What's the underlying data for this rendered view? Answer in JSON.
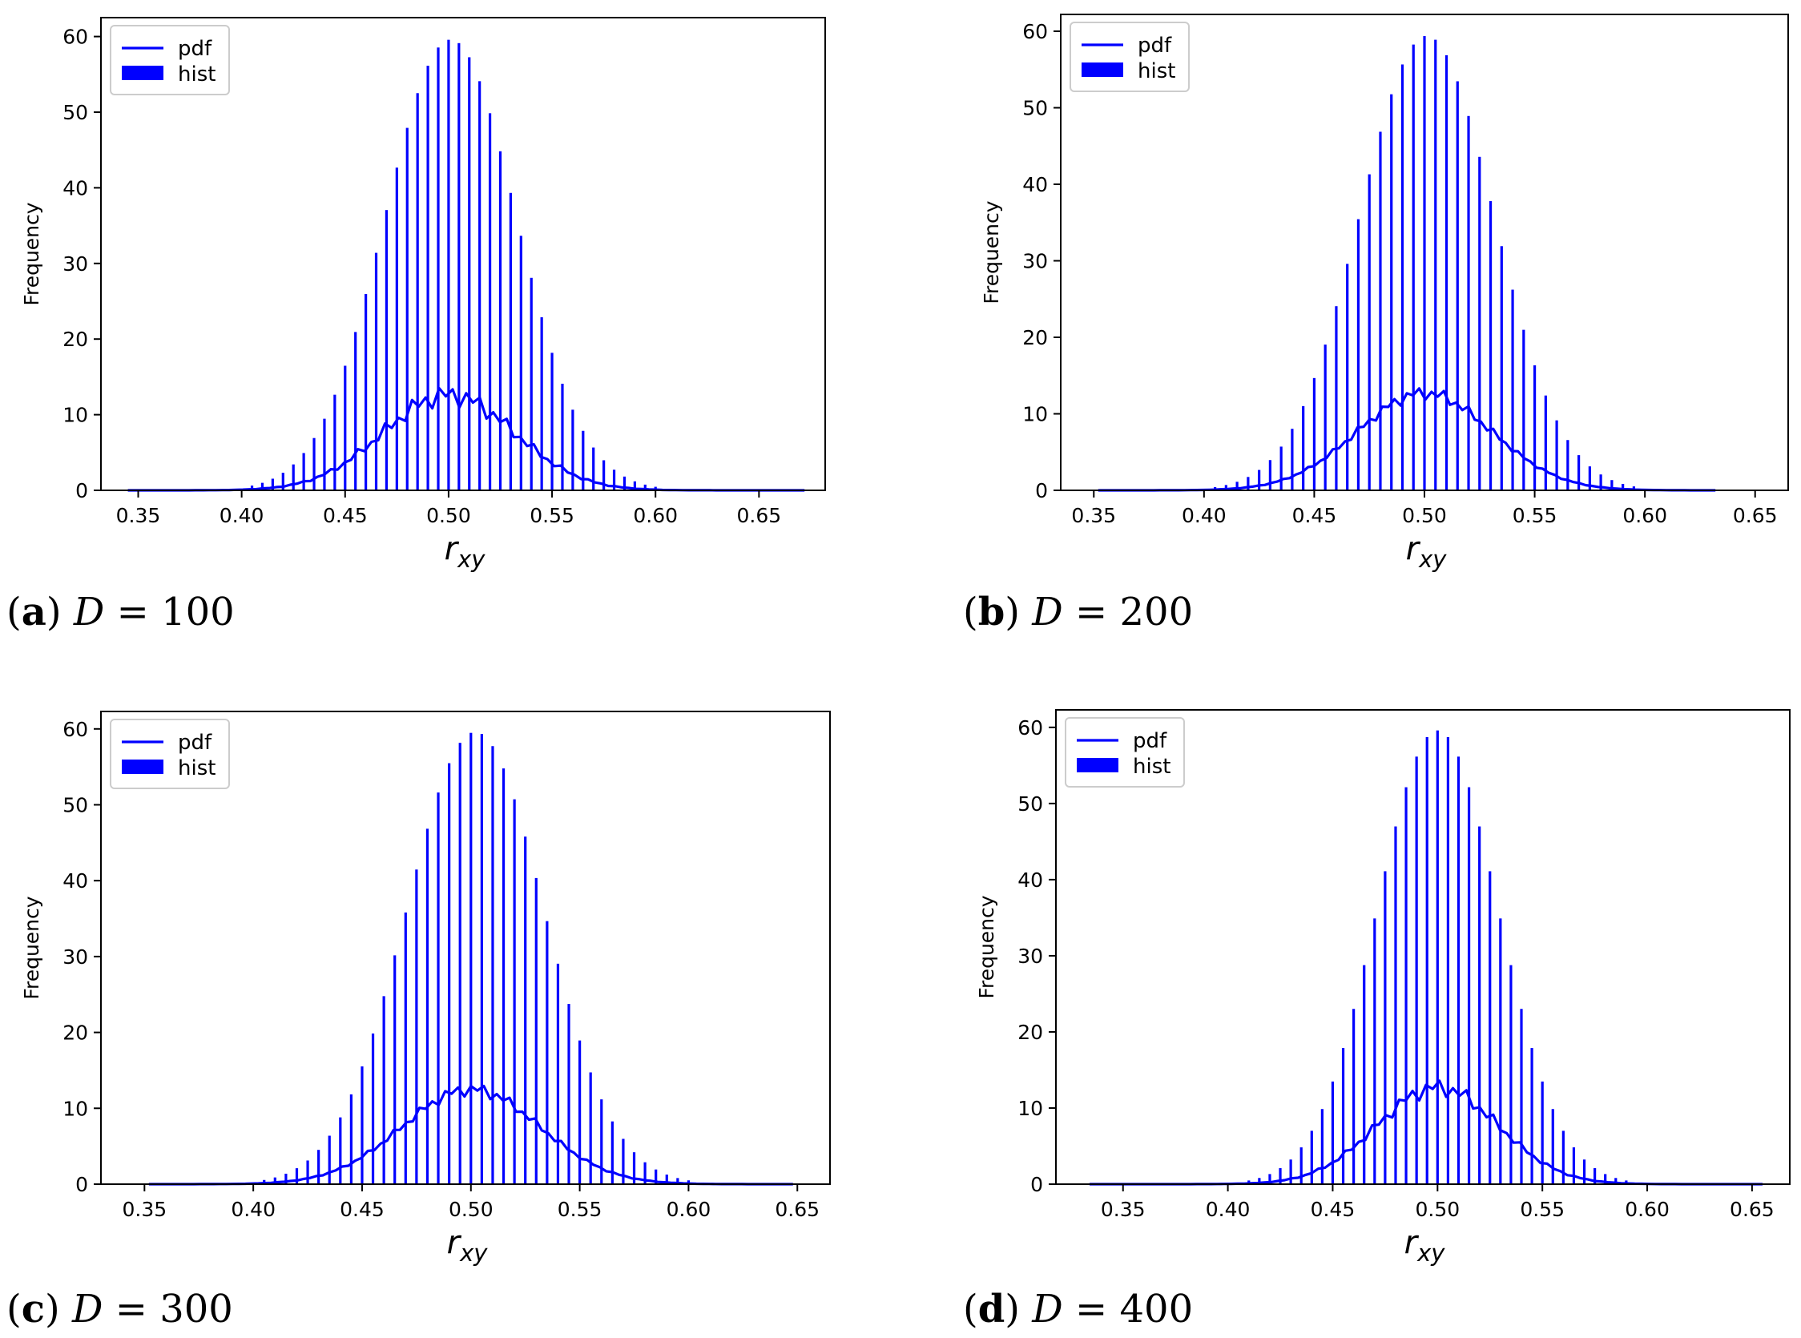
{
  "chart_data": [
    {
      "type": "bar",
      "panel_label": "a",
      "caption": "D = 100",
      "caption_var": "D",
      "caption_eq": "=",
      "caption_value": "100",
      "xlabel_base": "r",
      "xlabel_sub": "xy",
      "ylabel": "Frequency",
      "xlim": [
        0.332,
        0.682
      ],
      "ylim": [
        0,
        62.5
      ],
      "xticks": [
        0.35,
        0.4,
        0.45,
        0.5,
        0.55,
        0.6,
        0.65
      ],
      "xtick_labels": [
        "0.35",
        "0.40",
        "0.45",
        "0.50",
        "0.55",
        "0.60",
        "0.65"
      ],
      "yticks": [
        0,
        10,
        20,
        30,
        40,
        50,
        60
      ],
      "ytick_labels": [
        "0",
        "10",
        "20",
        "30",
        "40",
        "50",
        "60"
      ],
      "hist_mu": 0.501,
      "hist_sigma": 0.0318,
      "hist_peak": 59.6,
      "bar_step": 0.005,
      "bar_min_height": 0.4,
      "pdf_x_range": [
        0.345,
        0.672
      ],
      "pdf_mu": 0.5,
      "pdf_sigma": 0.0318,
      "pdf_peak": 12.6,
      "pdf_jitter": 1.5,
      "legend": [
        "pdf",
        "hist"
      ],
      "legend_position": "upper-left",
      "color": "#0000ff"
    },
    {
      "type": "bar",
      "panel_label": "b",
      "caption": "D = 200",
      "caption_var": "D",
      "caption_eq": "=",
      "caption_value": "200",
      "xlabel_base": "r",
      "xlabel_sub": "xy",
      "ylabel": "Frequency",
      "xlim": [
        0.335,
        0.665
      ],
      "ylim": [
        0,
        62.2
      ],
      "xticks": [
        0.35,
        0.4,
        0.45,
        0.5,
        0.55,
        0.6,
        0.65
      ],
      "xtick_labels": [
        "0.35",
        "0.40",
        "0.45",
        "0.50",
        "0.55",
        "0.60",
        "0.65"
      ],
      "yticks": [
        0,
        10,
        20,
        30,
        40,
        50,
        60
      ],
      "ytick_labels": [
        "0",
        "10",
        "20",
        "30",
        "40",
        "50",
        "60"
      ],
      "hist_mu": 0.501,
      "hist_sigma": 0.0305,
      "hist_peak": 59.4,
      "bar_step": 0.005,
      "bar_min_height": 0.4,
      "pdf_x_range": [
        0.352,
        0.632
      ],
      "pdf_mu": 0.5,
      "pdf_sigma": 0.0305,
      "pdf_peak": 12.7,
      "pdf_jitter": 0.9,
      "legend": [
        "pdf",
        "hist"
      ],
      "legend_position": "upper-left",
      "color": "#0000ff"
    },
    {
      "type": "bar",
      "panel_label": "c",
      "caption": "D = 300",
      "caption_var": "D",
      "caption_eq": "=",
      "caption_value": "300",
      "xlabel_base": "r",
      "xlabel_sub": "xy",
      "ylabel": "Frequency",
      "xlim": [
        0.33,
        0.665
      ],
      "ylim": [
        0,
        62.3
      ],
      "xticks": [
        0.35,
        0.4,
        0.45,
        0.5,
        0.55,
        0.6,
        0.65
      ],
      "xtick_labels": [
        "0.35",
        "0.40",
        "0.45",
        "0.50",
        "0.55",
        "0.60",
        "0.65"
      ],
      "yticks": [
        0,
        10,
        20,
        30,
        40,
        50,
        60
      ],
      "ytick_labels": [
        "0",
        "10",
        "20",
        "30",
        "40",
        "50",
        "60"
      ],
      "hist_mu": 0.502,
      "hist_sigma": 0.0317,
      "hist_peak": 59.6,
      "bar_step": 0.005,
      "bar_min_height": 0.4,
      "pdf_x_range": [
        0.352,
        0.648
      ],
      "pdf_mu": 0.5,
      "pdf_sigma": 0.0317,
      "pdf_peak": 12.5,
      "pdf_jitter": 0.9,
      "legend": [
        "pdf",
        "hist"
      ],
      "legend_position": "upper-left",
      "color": "#0000ff"
    },
    {
      "type": "bar",
      "panel_label": "d",
      "caption": "D = 400",
      "caption_var": "D",
      "caption_eq": "=",
      "caption_value": "400",
      "xlabel_base": "r",
      "xlabel_sub": "xy",
      "ylabel": "Frequency",
      "xlim": [
        0.318,
        0.668
      ],
      "ylim": [
        0,
        62.3
      ],
      "xticks": [
        0.35,
        0.4,
        0.45,
        0.5,
        0.55,
        0.6,
        0.65
      ],
      "xtick_labels": [
        "0.35",
        "0.40",
        "0.45",
        "0.50",
        "0.55",
        "0.60",
        "0.65"
      ],
      "yticks": [
        0,
        10,
        20,
        30,
        40,
        50,
        60
      ],
      "ytick_labels": [
        "0",
        "10",
        "20",
        "30",
        "40",
        "50",
        "60"
      ],
      "hist_mu": 0.5,
      "hist_sigma": 0.029,
      "hist_peak": 59.6,
      "bar_step": 0.005,
      "bar_min_height": 0.4,
      "pdf_x_range": [
        0.334,
        0.655
      ],
      "pdf_mu": 0.5,
      "pdf_sigma": 0.029,
      "pdf_peak": 12.7,
      "pdf_jitter": 1.2,
      "legend": [
        "pdf",
        "hist"
      ],
      "legend_position": "upper-left",
      "color": "#0000ff"
    }
  ]
}
